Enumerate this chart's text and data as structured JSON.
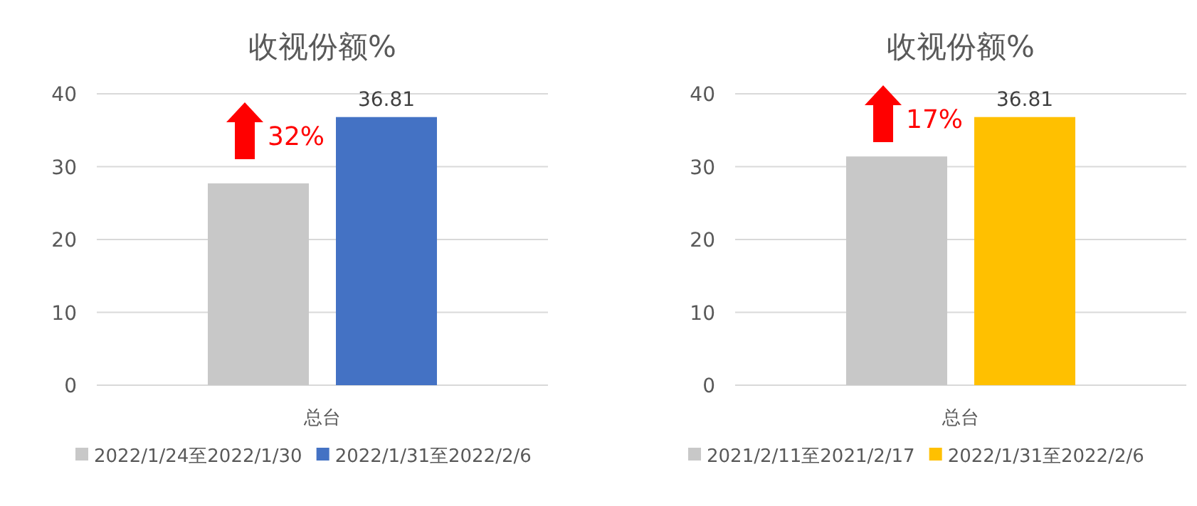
{
  "chart_data": [
    {
      "type": "bar",
      "title": "收视份额%",
      "categories": [
        "总台"
      ],
      "series": [
        {
          "name": "2022/1/24至2022/1/30",
          "color": "#c8c8c8",
          "values": [
            27.7
          ]
        },
        {
          "name": "2022/1/31至2022/2/6",
          "color": "#4472c4",
          "values": [
            36.81
          ],
          "value_labels": [
            "36.81"
          ]
        }
      ],
      "ylim": [
        0,
        40
      ],
      "yticks": [
        0,
        10,
        20,
        30,
        40
      ],
      "grid": "y",
      "legend": "bottom",
      "annotations": [
        "32%"
      ]
    },
    {
      "type": "bar",
      "title": "收视份额%",
      "categories": [
        "总台"
      ],
      "series": [
        {
          "name": "2021/2/11至2021/2/17",
          "color": "#c8c8c8",
          "values": [
            31.4
          ]
        },
        {
          "name": "2022/1/31至2022/2/6",
          "color": "#ffc000",
          "values": [
            36.81
          ],
          "value_labels": [
            "36.81"
          ]
        }
      ],
      "ylim": [
        0,
        40
      ],
      "yticks": [
        0,
        10,
        20,
        30,
        40
      ],
      "grid": "y",
      "legend": "bottom",
      "annotations": [
        "17%"
      ]
    }
  ]
}
